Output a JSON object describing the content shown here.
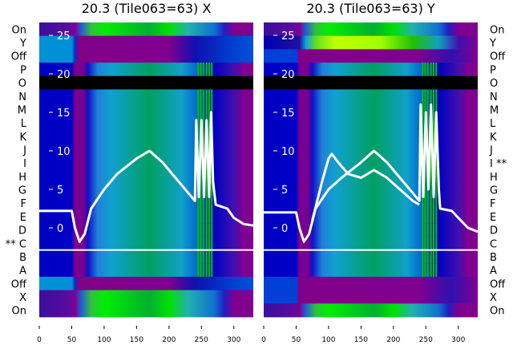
{
  "chart_data": {
    "type": "heatmap",
    "xlim": [
      0,
      330
    ],
    "ylim": [
      -3,
      26
    ],
    "x_ticks": [
      "0",
      "50",
      "100",
      "150",
      "200",
      "250",
      "300"
    ],
    "x_tick_values": [
      0,
      50,
      100,
      150,
      200,
      250,
      300
    ],
    "y_ticks": [
      "0",
      "5",
      "10",
      "15",
      "20",
      "25"
    ],
    "y_tick_values": [
      0,
      5,
      10,
      15,
      20,
      25
    ],
    "colormaps": {
      "on": [
        [
          0,
          "#3a0f9e"
        ],
        [
          45,
          "#5a0aa0"
        ],
        [
          55,
          "#800090"
        ],
        [
          65,
          "#2060d0"
        ],
        [
          80,
          "#30c040"
        ],
        [
          100,
          "#00ee00"
        ],
        [
          170,
          "#00b030"
        ],
        [
          200,
          "#00e000"
        ],
        [
          230,
          "#20b0b0"
        ],
        [
          270,
          "#1070d0"
        ],
        [
          285,
          "#2020c0"
        ],
        [
          300,
          "#800090"
        ],
        [
          330,
          "#800090"
        ]
      ],
      "off": [
        [
          0,
          "#0090d8"
        ],
        [
          50,
          "#0090d8"
        ],
        [
          55,
          "#0030c0"
        ],
        [
          60,
          "#800088"
        ],
        [
          200,
          "#800090"
        ],
        [
          240,
          "#1010b0"
        ],
        [
          300,
          "#0040d0"
        ],
        [
          330,
          "#0050d8"
        ]
      ],
      "off2": [
        [
          0,
          "#0040d8"
        ],
        [
          50,
          "#0040d8"
        ],
        [
          55,
          "#800088"
        ],
        [
          240,
          "#800090"
        ],
        [
          290,
          "#3010b0"
        ],
        [
          330,
          "#800090"
        ]
      ],
      "normal": [
        [
          0,
          "#0000c0"
        ],
        [
          50,
          "#0000c8"
        ],
        [
          55,
          "#7a0090"
        ],
        [
          68,
          "#7a0090"
        ],
        [
          75,
          "#1010c8"
        ],
        [
          90,
          "#2080d8"
        ],
        [
          110,
          "#10a0d0"
        ],
        [
          170,
          "#00a060"
        ],
        [
          220,
          "#10a0c8"
        ],
        [
          240,
          "#0070d0"
        ],
        [
          270,
          "#0000c0"
        ],
        [
          300,
          "#4010b0"
        ],
        [
          315,
          "#800090"
        ],
        [
          330,
          "#800090"
        ]
      ],
      "yellow": [
        [
          0,
          "#0000b0"
        ],
        [
          55,
          "#2010a0"
        ],
        [
          65,
          "#10a0e0"
        ],
        [
          80,
          "#60e020"
        ],
        [
          110,
          "#c0ff00"
        ],
        [
          180,
          "#a0ff00"
        ],
        [
          230,
          "#20c000"
        ],
        [
          270,
          "#10a0c0"
        ],
        [
          300,
          "#4010b0"
        ],
        [
          330,
          "#800090"
        ]
      ],
      "black": [
        [
          0,
          "#000000"
        ],
        [
          330,
          "#000000"
        ]
      ]
    },
    "green_stripes_x": [
      245,
      249,
      253,
      258,
      262,
      266
    ],
    "separator_row_after": "C",
    "panels": [
      {
        "title": "20.3 (Tile063=63) X",
        "label_side": "left",
        "rows": [
          {
            "label": "On",
            "type": "on"
          },
          {
            "label": "Y",
            "type": "off"
          },
          {
            "label": "Off",
            "type": "off"
          },
          {
            "label": "P",
            "type": "normal"
          },
          {
            "label": "O",
            "type": "black"
          },
          {
            "label": "N",
            "type": "normal"
          },
          {
            "label": "M",
            "type": "normal"
          },
          {
            "label": "L",
            "type": "normal"
          },
          {
            "label": "K",
            "type": "normal"
          },
          {
            "label": "J",
            "type": "normal"
          },
          {
            "label": "I",
            "type": "normal"
          },
          {
            "label": "H",
            "type": "normal"
          },
          {
            "label": "G",
            "type": "normal"
          },
          {
            "label": "F",
            "type": "normal"
          },
          {
            "label": "E",
            "type": "normal"
          },
          {
            "label": "D",
            "type": "normal"
          },
          {
            "label": "** C",
            "type": "normal"
          },
          {
            "label": "B",
            "type": "normal"
          },
          {
            "label": "A",
            "type": "normal"
          },
          {
            "label": "Off",
            "type": "off"
          },
          {
            "label": "X",
            "type": "on"
          },
          {
            "label": "On",
            "type": "on"
          }
        ],
        "series": [
          {
            "name": "trace",
            "x": [
              0,
              50,
              55,
              62,
              70,
              80,
              100,
              120,
              150,
              170,
              190,
              210,
              230,
              240,
              242,
              246,
              250,
              254,
              258,
              262,
              265,
              268,
              272,
              290,
              300,
              315,
              330
            ],
            "y": [
              2.2,
              2.2,
              0,
              -1.8,
              -0.8,
              2.5,
              5,
              7,
              9,
              10,
              8.5,
              6.5,
              4.5,
              3.5,
              14,
              4,
              14,
              4,
              14,
              4,
              15,
              6,
              3,
              2.5,
              1.3,
              0.5,
              0.3
            ]
          }
        ]
      },
      {
        "title": "20.3 (Tile063=63) Y",
        "label_side": "right",
        "rows": [
          {
            "label": "On",
            "type": "on"
          },
          {
            "label": "Y",
            "type": "yellow"
          },
          {
            "label": "Off",
            "type": "off2"
          },
          {
            "label": "P",
            "type": "normal"
          },
          {
            "label": "O",
            "type": "black"
          },
          {
            "label": "N",
            "type": "normal"
          },
          {
            "label": "M",
            "type": "normal"
          },
          {
            "label": "L",
            "type": "normal"
          },
          {
            "label": "K",
            "type": "normal"
          },
          {
            "label": "J",
            "type": "normal"
          },
          {
            "label": "I **",
            "type": "normal"
          },
          {
            "label": "H",
            "type": "normal"
          },
          {
            "label": "G",
            "type": "normal"
          },
          {
            "label": "F",
            "type": "normal"
          },
          {
            "label": "E",
            "type": "normal"
          },
          {
            "label": "D",
            "type": "normal"
          },
          {
            "label": "C",
            "type": "normal"
          },
          {
            "label": "B",
            "type": "normal"
          },
          {
            "label": "A",
            "type": "normal"
          },
          {
            "label": "Off",
            "type": "off2"
          },
          {
            "label": "X",
            "type": "off2"
          },
          {
            "label": "On",
            "type": "on"
          }
        ],
        "series": [
          {
            "name": "trace",
            "x": [
              0,
              50,
              55,
              62,
              70,
              80,
              100,
              120,
              150,
              170,
              190,
              210,
              230,
              240,
              242,
              246,
              250,
              254,
              258,
              262,
              266,
              270,
              272,
              290,
              300,
              315,
              330
            ],
            "y": [
              2,
              2,
              0,
              -1.8,
              -0.8,
              2.5,
              5,
              6.5,
              8.5,
              10,
              8.5,
              6.5,
              4.5,
              3.5,
              16,
              4,
              15,
              5,
              16,
              4,
              15,
              5,
              2.5,
              2.2,
              1.3,
              0,
              -0.5
            ]
          },
          {
            "name": "trace-bump",
            "x": [
              75,
              90,
              100,
              105,
              115,
              130,
              150,
              170,
              190,
              210,
              230,
              240
            ],
            "y": [
              1,
              6,
              9,
              9.6,
              8.5,
              7,
              6.5,
              7.5,
              6.5,
              5,
              3.5,
              3
            ]
          }
        ]
      }
    ]
  }
}
